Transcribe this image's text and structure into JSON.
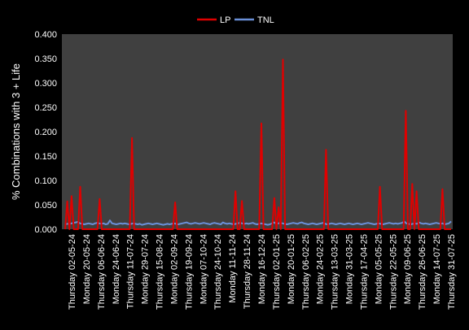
{
  "chart_data": {
    "type": "line",
    "ylabel": "% Combinations with 3 + Life",
    "ylim": [
      0,
      0.4
    ],
    "yticks": [
      "0.000",
      "0.050",
      "0.100",
      "0.150",
      "0.200",
      "0.250",
      "0.300",
      "0.350",
      "0.400"
    ],
    "xlabels": [
      "Thursday  02-05-24",
      "Monday 20-05-24",
      "Thursday 06-06-24",
      "Monday 24-06-24",
      "Thursday  11-07-24",
      "Monday 29-07-24",
      "Thursday 15-08-24",
      "Monday 02-09-24",
      "Thursday 19-09-24",
      "Monday 07-10-24",
      "Thursday 24-10-24",
      "Monday 11-11-24",
      "Thursday 28-11-24",
      "Monday 16-12-24",
      "Thursday 02-01-25",
      "Monday 20-01-25",
      "Thursday 06-02-25",
      "Monday 24-02-25",
      "Thursday 13-03-25",
      "Monday 31-03-25",
      "Thursday 17-04-25",
      "Monday 05-05-25",
      "Thursday 22-05-25",
      "Monday 09-06-25",
      "Thursday 26-06-25",
      "Monday 14-07-25",
      "Thursday 31-07-25"
    ],
    "grid": false,
    "legend_position": "top-center",
    "series": [
      {
        "name": "LP",
        "color": "#e00000",
        "values": [
          0,
          0.057,
          0,
          0.068,
          0,
          0,
          0,
          0.087,
          0,
          0,
          0,
          0,
          0,
          0,
          0,
          0,
          0.062,
          0,
          0,
          0,
          0,
          0,
          0,
          0,
          0,
          0,
          0,
          0,
          0,
          0,
          0,
          0.187,
          0,
          0,
          0,
          0,
          0,
          0,
          0,
          0,
          0,
          0,
          0,
          0,
          0,
          0,
          0,
          0,
          0,
          0,
          0,
          0.055,
          0,
          0,
          0,
          0,
          0,
          0,
          0,
          0,
          0,
          0,
          0,
          0,
          0,
          0,
          0,
          0,
          0,
          0,
          0,
          0,
          0,
          0,
          0,
          0,
          0,
          0,
          0,
          0.078,
          0,
          0,
          0.058,
          0,
          0,
          0,
          0,
          0,
          0,
          0,
          0,
          0.217,
          0,
          0,
          0,
          0,
          0,
          0.064,
          0,
          0.045,
          0,
          0.348,
          0,
          0,
          0,
          0,
          0,
          0,
          0,
          0,
          0,
          0,
          0,
          0,
          0,
          0,
          0,
          0,
          0,
          0,
          0,
          0.163,
          0,
          0,
          0,
          0,
          0,
          0,
          0,
          0,
          0,
          0,
          0,
          0,
          0,
          0,
          0,
          0,
          0,
          0,
          0,
          0,
          0,
          0,
          0,
          0,
          0.087,
          0,
          0,
          0,
          0,
          0,
          0,
          0,
          0,
          0,
          0,
          0,
          0.243,
          0,
          0,
          0.093,
          0,
          0.078,
          0,
          0,
          0,
          0,
          0,
          0,
          0,
          0,
          0,
          0,
          0,
          0.082,
          0,
          0,
          0,
          0
        ]
      },
      {
        "name": "TNL",
        "color": "#6a8fd8",
        "values": [
          0.01,
          0.011,
          0.011,
          0.012,
          0.013,
          0.014,
          0.015,
          0.012,
          0.011,
          0.01,
          0.011,
          0.012,
          0.011,
          0.01,
          0.012,
          0.013,
          0.012,
          0.011,
          0.012,
          0.01,
          0.011,
          0.018,
          0.012,
          0.011,
          0.01,
          0.011,
          0.012,
          0.011,
          0.012,
          0.011,
          0.01,
          0.011,
          0.012,
          0.011,
          0.01,
          0.011,
          0.009,
          0.01,
          0.011,
          0.012,
          0.011,
          0.01,
          0.011,
          0.012,
          0.011,
          0.01,
          0.009,
          0.01,
          0.011,
          0.01,
          0.011,
          0.012,
          0.011,
          0.01,
          0.011,
          0.012,
          0.013,
          0.014,
          0.012,
          0.011,
          0.012,
          0.013,
          0.012,
          0.011,
          0.012,
          0.013,
          0.012,
          0.011,
          0.01,
          0.012,
          0.013,
          0.012,
          0.011,
          0.01,
          0.014,
          0.012,
          0.011,
          0.012,
          0.011,
          0.01,
          0.011,
          0.012,
          0.013,
          0.012,
          0.011,
          0.012,
          0.011,
          0.012,
          0.013,
          0.011,
          0.01,
          0.011,
          0.012,
          0.011,
          0.01,
          0.009,
          0.01,
          0.012,
          0.014,
          0.011,
          0.012,
          0.013,
          0.012,
          0.011,
          0.01,
          0.011,
          0.012,
          0.013,
          0.012,
          0.011,
          0.013,
          0.014,
          0.012,
          0.011,
          0.01,
          0.011,
          0.012,
          0.011,
          0.01,
          0.011,
          0.012,
          0.013,
          0.011,
          0.01,
          0.011,
          0.012,
          0.011,
          0.01,
          0.011,
          0.012,
          0.011,
          0.01,
          0.011,
          0.012,
          0.011,
          0.01,
          0.011,
          0.012,
          0.011,
          0.01,
          0.011,
          0.012,
          0.013,
          0.012,
          0.011,
          0.01,
          0.011,
          0.012,
          0.011,
          0.01,
          0.011,
          0.012,
          0.013,
          0.012,
          0.011,
          0.012,
          0.011,
          0.012,
          0.013,
          0.016,
          0.012,
          0.011,
          0.01,
          0.011,
          0.012,
          0.011,
          0.014,
          0.012,
          0.011,
          0.012,
          0.011,
          0.01,
          0.011,
          0.012,
          0.013,
          0.012,
          0.011,
          0.012,
          0.01,
          0.011,
          0.012,
          0.016
        ]
      }
    ]
  }
}
